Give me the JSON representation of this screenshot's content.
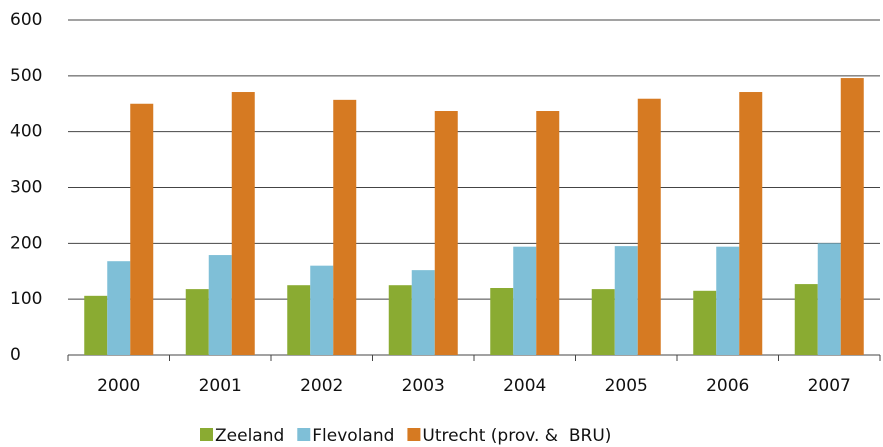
{
  "chart_data": {
    "type": "bar",
    "categories": [
      "2000",
      "2001",
      "2002",
      "2003",
      "2004",
      "2005",
      "2006",
      "2007"
    ],
    "series": [
      {
        "name": "Zeeland",
        "color": "#8aab32",
        "values": [
          106,
          118,
          125,
          125,
          120,
          118,
          115,
          127
        ]
      },
      {
        "name": "Flevoland",
        "color": "#7fbfd7",
        "values": [
          168,
          179,
          160,
          152,
          194,
          195,
          194,
          200
        ]
      },
      {
        "name": "Utrecht (prov. &  BRU)",
        "color": "#d67a22",
        "values": [
          450,
          471,
          457,
          437,
          437,
          459,
          471,
          496
        ]
      }
    ],
    "ylim": [
      0,
      600
    ],
    "yticks": [
      0,
      100,
      200,
      300,
      400,
      500,
      600
    ],
    "grid": true,
    "legend": "bottom"
  }
}
